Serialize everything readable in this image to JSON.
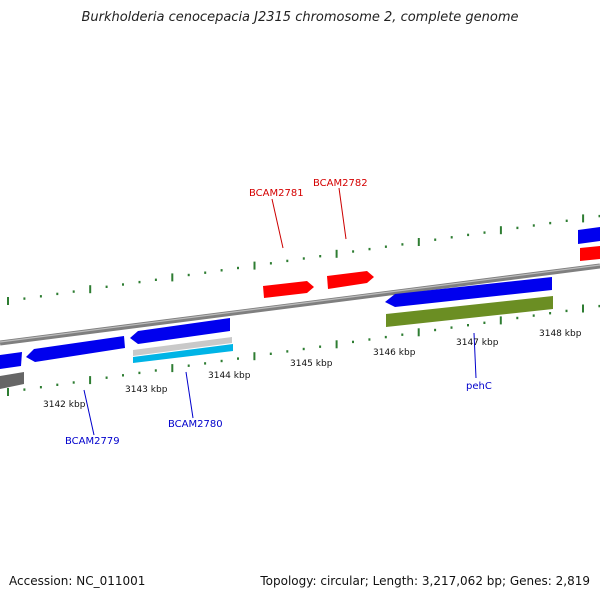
{
  "title": "Burkholderia cenocepacia J2315 chromosome 2, complete genome",
  "footer": {
    "accession": "Accession: NC_011001",
    "summary": "Topology: circular; Length: 3,217,062 bp; Genes: 2,819"
  },
  "colors": {
    "forward_gene": "#ff0000",
    "reverse_gene": "#0000ee",
    "rrna_like": "#6b8e23",
    "cyan_feature": "#00b4e6",
    "backbone": "#808080",
    "tick": "#2e7d32",
    "label_forward": "#d40000",
    "label_reverse": "#0000cc"
  },
  "scale_labels": [
    "3142 kbp",
    "3143 kbp",
    "3144 kbp",
    "3145 kbp",
    "3146 kbp",
    "3147 kbp",
    "3148 kbp"
  ],
  "gene_labels": {
    "bcam2781": "BCAM2781",
    "bcam2782": "BCAM2782",
    "bcam2779": "BCAM2779",
    "bcam2780": "BCAM2780",
    "pehc": "pehC"
  }
}
